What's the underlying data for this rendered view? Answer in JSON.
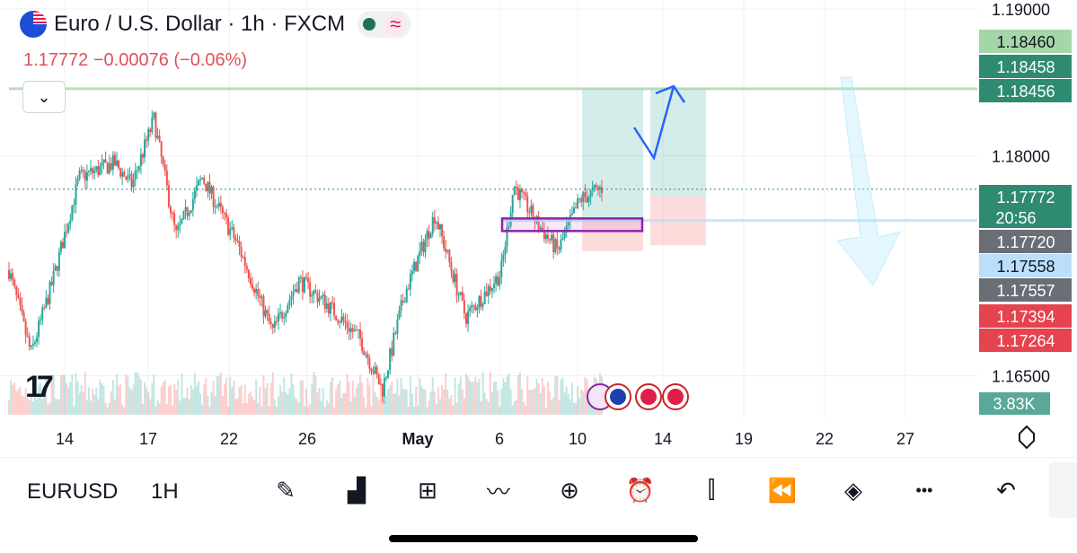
{
  "header": {
    "title": "Euro / U.S. Dollar · 1h · FXCM",
    "quote": "1.17772 −0.00076 (−0.06%)",
    "approx_label": "≈",
    "logo_text": "17"
  },
  "price_axis": {
    "ticks": [
      {
        "value": 1.19,
        "label": "1.19000"
      },
      {
        "value": 1.18,
        "label": "1.18000"
      },
      {
        "value": 1.165,
        "label": "1.16500"
      }
    ],
    "tags": [
      {
        "value": 1.1846,
        "label": "1.18460",
        "bg": "#a5d6a7",
        "fg": "#131722"
      },
      {
        "value": 1.18458,
        "label": "1.18458",
        "bg": "#2e8b72",
        "fg": "#ffffff"
      },
      {
        "value": 1.18456,
        "label": "1.18456",
        "bg": "#2e8b72",
        "fg": "#ffffff"
      },
      {
        "value": 1.17772,
        "label": "1.17772",
        "sub": "20:56",
        "bg": "#2e8b72",
        "fg": "#ffffff"
      },
      {
        "value": 1.1772,
        "label": "1.17720",
        "bg": "#6b6e76",
        "fg": "#ffffff"
      },
      {
        "value": 1.17558,
        "label": "1.17558",
        "bg": "#bbdefb",
        "fg": "#131722"
      },
      {
        "value": 1.17557,
        "label": "1.17557",
        "bg": "#6b6e76",
        "fg": "#ffffff"
      },
      {
        "value": 1.17394,
        "label": "1.17394",
        "bg": "#e5444f",
        "fg": "#ffffff"
      },
      {
        "value": 1.17264,
        "label": "1.17264",
        "bg": "#e5444f",
        "fg": "#ffffff"
      }
    ],
    "volume_tag": "3.83K"
  },
  "time_axis": [
    "14",
    "17",
    "22",
    "26",
    "May",
    "6",
    "10",
    "14",
    "19",
    "22",
    "27"
  ],
  "chart_data": {
    "type": "candlestick",
    "symbol": "EURUSD",
    "interval": "1H",
    "x": [
      "14",
      "17",
      "22",
      "26",
      "May",
      "6",
      "10",
      "14",
      "19",
      "22",
      "27"
    ],
    "price_range": [
      1.1632,
      1.19
    ],
    "anchors": [
      [
        0,
        1.1722
      ],
      [
        0.025,
        1.1665
      ],
      [
        0.05,
        1.1715
      ],
      [
        0.08,
        1.1785
      ],
      [
        0.12,
        1.1795
      ],
      [
        0.14,
        1.178
      ],
      [
        0.165,
        1.1825
      ],
      [
        0.19,
        1.1745
      ],
      [
        0.22,
        1.1785
      ],
      [
        0.26,
        1.174
      ],
      [
        0.3,
        1.168
      ],
      [
        0.33,
        1.1715
      ],
      [
        0.36,
        1.17
      ],
      [
        0.4,
        1.1675
      ],
      [
        0.425,
        1.164
      ],
      [
        0.45,
        1.1705
      ],
      [
        0.485,
        1.176
      ],
      [
        0.52,
        1.169
      ],
      [
        0.56,
        1.172
      ],
      [
        0.575,
        1.178
      ],
      [
        0.6,
        1.1755
      ],
      [
        0.625,
        1.1735
      ],
      [
        0.65,
        1.177
      ],
      [
        0.675,
        1.1778
      ]
    ],
    "volume_max_label": "3.83K",
    "lines": [
      {
        "value": 1.18456,
        "color": "#a5d6a7"
      },
      {
        "value": 1.17558,
        "color": "#bbdefb"
      },
      {
        "value": 1.17772,
        "color": "#2e8b72",
        "dotted": true
      }
    ],
    "positions": [
      {
        "start": "10",
        "end": "14",
        "entry": 1.1756,
        "target": 1.18456,
        "stop": 1.1735
      },
      {
        "start": "14",
        "end": "19",
        "entry": 1.1772,
        "target": 1.18456,
        "stop": 1.1739
      }
    ],
    "zone": {
      "start": "6",
      "end": "14",
      "top": 1.1756,
      "bottom": 1.1752
    },
    "event_badges": [
      "lightning",
      "EU",
      "US",
      "US"
    ]
  },
  "toolbar": {
    "symbol": "EURUSD",
    "timeframe": "1H",
    "tools": [
      {
        "name": "draw-tool-icon",
        "glyph": "✎"
      },
      {
        "name": "indicators-icon",
        "glyph": "▟"
      },
      {
        "name": "layouts-icon",
        "glyph": "⊞"
      },
      {
        "name": "compare-icon",
        "glyph": "〰"
      },
      {
        "name": "add-icon",
        "glyph": "⊕"
      },
      {
        "name": "alert-icon",
        "glyph": "⏰"
      },
      {
        "name": "chart-type-icon",
        "glyph": "⫿"
      },
      {
        "name": "replay-icon",
        "glyph": "⏪"
      },
      {
        "name": "layers-icon",
        "glyph": "◈"
      },
      {
        "name": "more-icon",
        "glyph": "•••"
      },
      {
        "name": "undo-icon",
        "glyph": "↶"
      }
    ]
  },
  "colors": {
    "up": "#26a69a",
    "down": "#ef5350",
    "grid": "#eef0f3"
  }
}
